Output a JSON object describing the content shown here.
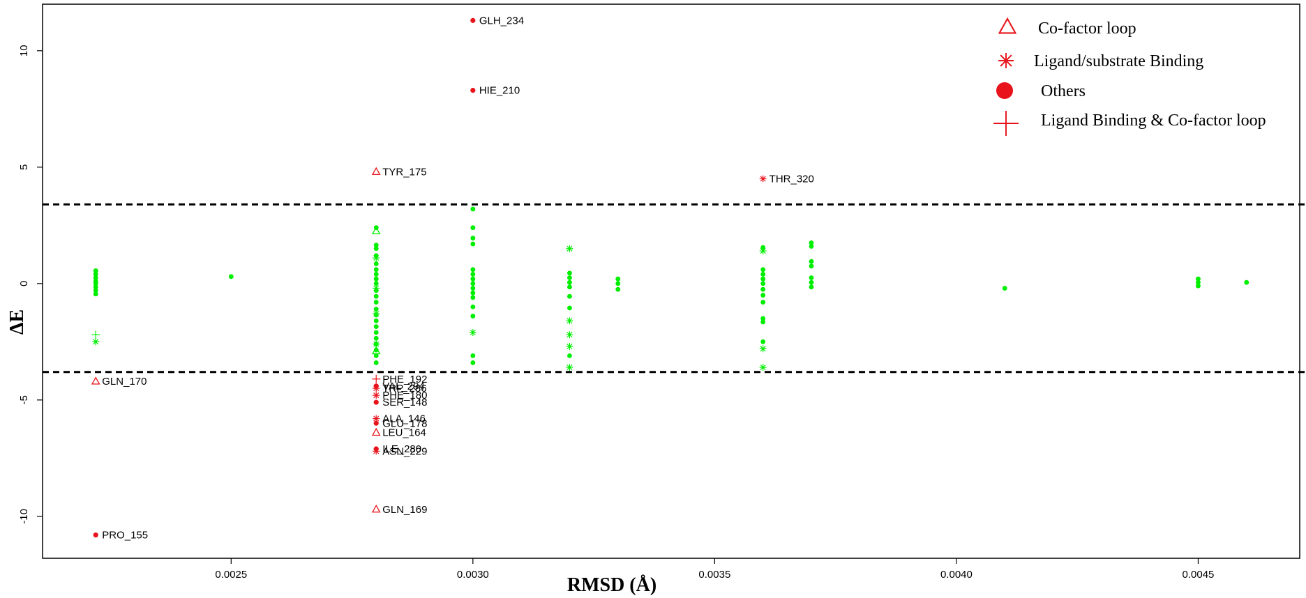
{
  "chart_data": {
    "type": "scatter",
    "xlabel": "RMSD (Å)",
    "ylabel": "ΔE",
    "xlim": [
      0.00211,
      0.00471
    ],
    "ylim": [
      -11.8,
      12.0
    ],
    "xticks": [
      0.0025,
      0.003,
      0.0035,
      0.004,
      0.0045
    ],
    "xtick_labels": [
      "0.0025",
      "0.0030",
      "0.0035",
      "0.0040",
      "0.0045"
    ],
    "yticks": [
      -10,
      -5,
      0,
      5,
      10
    ],
    "ytick_labels": [
      "-10",
      "-5",
      "0",
      "5",
      "10"
    ],
    "grid": false,
    "threshold_lines": [
      3.4,
      -3.8
    ],
    "colors": {
      "highlight": "#e8131b",
      "background": "#00ee00",
      "threshold": "#000000"
    },
    "legend": {
      "position": "top-right",
      "entries": [
        {
          "label": "Co-factor loop",
          "marker": "triangle"
        },
        {
          "label": "Ligand/substrate Binding",
          "marker": "asterisk"
        },
        {
          "label": "Others",
          "marker": "circle"
        },
        {
          "label": "Ligand Binding & Co-factor loop",
          "marker": "plus"
        }
      ]
    },
    "series": [
      {
        "name": "Co-factor loop",
        "marker": "triangle",
        "points": [
          {
            "x": 0.0028,
            "y": 4.8,
            "label": "TYR_175"
          },
          {
            "x": 0.00222,
            "y": -4.2,
            "label": "GLN_170"
          },
          {
            "x": 0.0028,
            "y": -6.4,
            "label": "LEU_164"
          },
          {
            "x": 0.0028,
            "y": -9.7,
            "label": "GLN_169"
          }
        ]
      },
      {
        "name": "Ligand/substrate Binding",
        "marker": "asterisk",
        "points": [
          {
            "x": 0.0036,
            "y": 4.5,
            "label": "THR_320"
          },
          {
            "x": 0.0028,
            "y": -4.5,
            "label": "TRP_286"
          },
          {
            "x": 0.0028,
            "y": -4.8,
            "label": "PHE_180"
          },
          {
            "x": 0.0028,
            "y": -5.8,
            "label": "ALA_146"
          },
          {
            "x": 0.0028,
            "y": -7.2,
            "label": "ASN_229"
          }
        ]
      },
      {
        "name": "Others",
        "marker": "circle",
        "points": [
          {
            "x": 0.003,
            "y": 11.3,
            "label": "GLH_234"
          },
          {
            "x": 0.003,
            "y": 8.3,
            "label": "HIE_210"
          },
          {
            "x": 0.00222,
            "y": -10.8,
            "label": "PRO_155"
          },
          {
            "x": 0.0028,
            "y": -4.4,
            "label": "VAL_294"
          },
          {
            "x": 0.0028,
            "y": -5.1,
            "label": "SER_148"
          },
          {
            "x": 0.0028,
            "y": -6.0,
            "label": "GLU_178"
          },
          {
            "x": 0.0028,
            "y": -7.1,
            "label": "ILE_280"
          }
        ]
      },
      {
        "name": "Ligand Binding & Co-factor loop",
        "marker": "plus",
        "points": [
          {
            "x": 0.0028,
            "y": -4.1,
            "label": "PHE_192"
          }
        ]
      }
    ],
    "background_points": {
      "circles": [
        [
          0.00222,
          0.55
        ],
        [
          0.00222,
          0.4
        ],
        [
          0.00222,
          0.25
        ],
        [
          0.00222,
          0.1
        ],
        [
          0.00222,
          0.0
        ],
        [
          0.00222,
          -0.15
        ],
        [
          0.00222,
          -0.3
        ],
        [
          0.00222,
          -0.45
        ],
        [
          0.0025,
          0.3
        ],
        [
          0.0028,
          2.4
        ],
        [
          0.0028,
          1.65
        ],
        [
          0.0028,
          1.5
        ],
        [
          0.0028,
          1.2
        ],
        [
          0.0028,
          0.85
        ],
        [
          0.0028,
          0.6
        ],
        [
          0.0028,
          0.4
        ],
        [
          0.0028,
          0.2
        ],
        [
          0.0028,
          0.0
        ],
        [
          0.0028,
          -0.3
        ],
        [
          0.0028,
          -0.55
        ],
        [
          0.0028,
          -0.8
        ],
        [
          0.0028,
          -1.1
        ],
        [
          0.0028,
          -1.35
        ],
        [
          0.0028,
          -1.6
        ],
        [
          0.0028,
          -1.85
        ],
        [
          0.0028,
          -2.1
        ],
        [
          0.0028,
          -2.35
        ],
        [
          0.0028,
          -2.6
        ],
        [
          0.0028,
          -2.85
        ],
        [
          0.0028,
          -3.1
        ],
        [
          0.0028,
          -3.4
        ],
        [
          0.003,
          3.2
        ],
        [
          0.003,
          2.4
        ],
        [
          0.003,
          1.95
        ],
        [
          0.003,
          1.7
        ],
        [
          0.003,
          0.6
        ],
        [
          0.003,
          0.4
        ],
        [
          0.003,
          0.2
        ],
        [
          0.003,
          0.0
        ],
        [
          0.003,
          -0.2
        ],
        [
          0.003,
          -0.4
        ],
        [
          0.003,
          -0.6
        ],
        [
          0.003,
          -1.0
        ],
        [
          0.003,
          -1.4
        ],
        [
          0.003,
          -3.1
        ],
        [
          0.003,
          -3.4
        ],
        [
          0.0032,
          0.45
        ],
        [
          0.0032,
          0.25
        ],
        [
          0.0032,
          0.05
        ],
        [
          0.0032,
          -0.15
        ],
        [
          0.0032,
          -0.55
        ],
        [
          0.0032,
          -1.05
        ],
        [
          0.0032,
          -3.1
        ],
        [
          0.0033,
          0.2
        ],
        [
          0.0033,
          0.0
        ],
        [
          0.0033,
          -0.25
        ],
        [
          0.0036,
          1.55
        ],
        [
          0.0036,
          0.6
        ],
        [
          0.0036,
          0.4
        ],
        [
          0.0036,
          0.2
        ],
        [
          0.0036,
          0.0
        ],
        [
          0.0036,
          -0.25
        ],
        [
          0.0036,
          -0.5
        ],
        [
          0.0036,
          -0.8
        ],
        [
          0.0036,
          -1.5
        ],
        [
          0.0036,
          -1.65
        ],
        [
          0.0036,
          -2.5
        ],
        [
          0.0037,
          1.75
        ],
        [
          0.0037,
          1.6
        ],
        [
          0.0037,
          0.95
        ],
        [
          0.0037,
          0.75
        ],
        [
          0.0037,
          0.25
        ],
        [
          0.0037,
          0.05
        ],
        [
          0.0037,
          -0.15
        ],
        [
          0.0041,
          -0.2
        ],
        [
          0.0045,
          0.2
        ],
        [
          0.0045,
          0.05
        ],
        [
          0.0045,
          -0.1
        ],
        [
          0.0046,
          0.05
        ]
      ],
      "asterisks": [
        [
          0.00222,
          -2.5
        ],
        [
          0.0028,
          1.1
        ],
        [
          0.0028,
          -0.2
        ],
        [
          0.0028,
          -1.3
        ],
        [
          0.0028,
          -2.6
        ],
        [
          0.003,
          -2.1
        ],
        [
          0.0032,
          1.5
        ],
        [
          0.0032,
          -1.6
        ],
        [
          0.0032,
          -2.2
        ],
        [
          0.0032,
          -2.7
        ],
        [
          0.0032,
          -3.6
        ],
        [
          0.0036,
          1.4
        ],
        [
          0.0036,
          -2.8
        ],
        [
          0.0036,
          -3.6
        ]
      ],
      "triangles": [
        [
          0.0028,
          2.25
        ],
        [
          0.0028,
          -2.9
        ]
      ],
      "pluses": [
        [
          0.00222,
          -2.2
        ]
      ]
    }
  }
}
